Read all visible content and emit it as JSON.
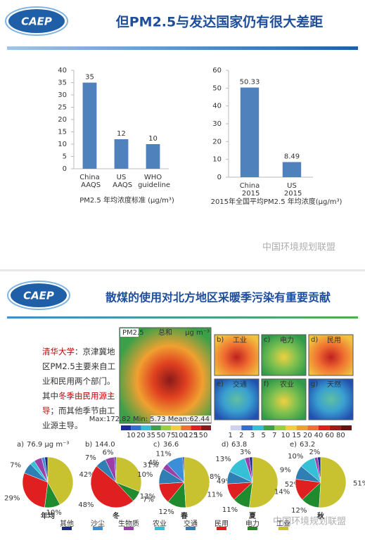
{
  "slides": [
    {
      "logo": "CAEP",
      "title": "但PM2.5与发达国家仍有很大差距",
      "watermark": "中国环境规划联盟"
    },
    {
      "logo": "CAEP",
      "title": "散煤的使用对北方地区采暖季污染有重要贡献",
      "watermark": "中国环境规划联盟",
      "text": [
        {
          "text": "清华大学",
          "highlight": true
        },
        {
          "text": "：京津冀地区PM2.5主要来自工业和民用两个部门。其中",
          "highlight": false
        },
        {
          "text": "冬季由民用源主导",
          "highlight": true
        },
        {
          "text": "；而其他季节由工业源主导。",
          "highlight": false
        }
      ],
      "maps": {
        "main": {
          "label": "PM2.5",
          "title": "总和",
          "unit": "μg m⁻³",
          "stats": "Max:172.82 Min: 5.73 Mean:62.44",
          "colorbar": [
            10,
            20,
            35,
            50,
            75,
            100,
            125,
            150
          ]
        },
        "panels": [
          {
            "letter": "b)",
            "title": "工业"
          },
          {
            "letter": "c)",
            "title": "电力"
          },
          {
            "letter": "d)",
            "title": "民用"
          },
          {
            "letter": "e)",
            "title": "交通"
          },
          {
            "letter": "f)",
            "title": "农业"
          },
          {
            "letter": "g)",
            "title": "天然"
          }
        ],
        "colorbar": [
          1,
          2,
          3,
          5,
          7,
          10,
          15,
          20,
          40,
          60,
          80
        ]
      }
    }
  ],
  "chart_data": [
    {
      "type": "bar",
      "categories": [
        "China AAQS",
        "US AAQS",
        "WHO guideline"
      ],
      "values": [
        35,
        12,
        10
      ],
      "color": "#4f81bd",
      "ylim": [
        0,
        40
      ],
      "yticks": [
        0,
        5,
        10,
        15,
        20,
        25,
        30,
        35,
        40
      ],
      "xlabel": "PM2.5 年均浓度标准 (μg/m³)"
    },
    {
      "type": "bar",
      "categories": [
        "China 2015",
        "US 2015"
      ],
      "values": [
        50.33,
        8.49
      ],
      "color": "#4f81bd",
      "ylim": [
        0,
        60
      ],
      "yticks": [
        0,
        10,
        20,
        30,
        40,
        50,
        60
      ],
      "xlabel": "2015年全国平均PM2.5 年均浓度(μg/m³)"
    },
    {
      "type": "pie",
      "legend": "bottom",
      "categories": [
        "其他",
        "沙尘",
        "生物质",
        "农业",
        "交通",
        "民用",
        "电力",
        "工业"
      ],
      "colors": [
        "#1c2a8c",
        "#3b8fd9",
        "#9b3fa7",
        "#35c0d8",
        "#2f7fb5",
        "#e02020",
        "#1f8a2e",
        "#c8c230"
      ],
      "series": [
        {
          "label": "a)",
          "title": "76.9 μg m⁻³",
          "name": "年均",
          "values": [
            2,
            2,
            5,
            3,
            7,
            29,
            10,
            42
          ],
          "value_labels": [
            null,
            null,
            null,
            null,
            "7%",
            "29%",
            "10%",
            "42%"
          ]
        },
        {
          "label": "b)",
          "title": "144.0",
          "name": "冬",
          "values": [
            1,
            0,
            6,
            0,
            7,
            48,
            7,
            31
          ],
          "value_labels": [
            null,
            null,
            "6%",
            null,
            "7%",
            "48%",
            "7%",
            "31%"
          ]
        },
        {
          "label": "c)",
          "title": "36.6",
          "name": "春",
          "values": [
            1,
            11,
            4,
            0,
            10,
            13,
            12,
            49
          ],
          "value_labels": [
            null,
            "11%",
            "4%",
            null,
            "10%",
            "13%",
            "12%",
            "49%"
          ]
        },
        {
          "label": "d)",
          "title": "63.8",
          "name": "夏",
          "values": [
            2,
            0,
            3,
            13,
            8,
            11,
            11,
            52
          ],
          "value_labels": [
            null,
            null,
            "3%",
            "13%",
            "8%",
            "11%",
            "11%",
            "52%"
          ]
        },
        {
          "label": "e)",
          "title": "63.2",
          "name": "秋",
          "values": [
            2,
            0,
            2,
            10,
            9,
            14,
            12,
            51
          ],
          "value_labels": [
            null,
            null,
            "2%",
            "10%",
            "9%",
            "14%",
            "12%",
            "51%"
          ]
        }
      ]
    }
  ]
}
